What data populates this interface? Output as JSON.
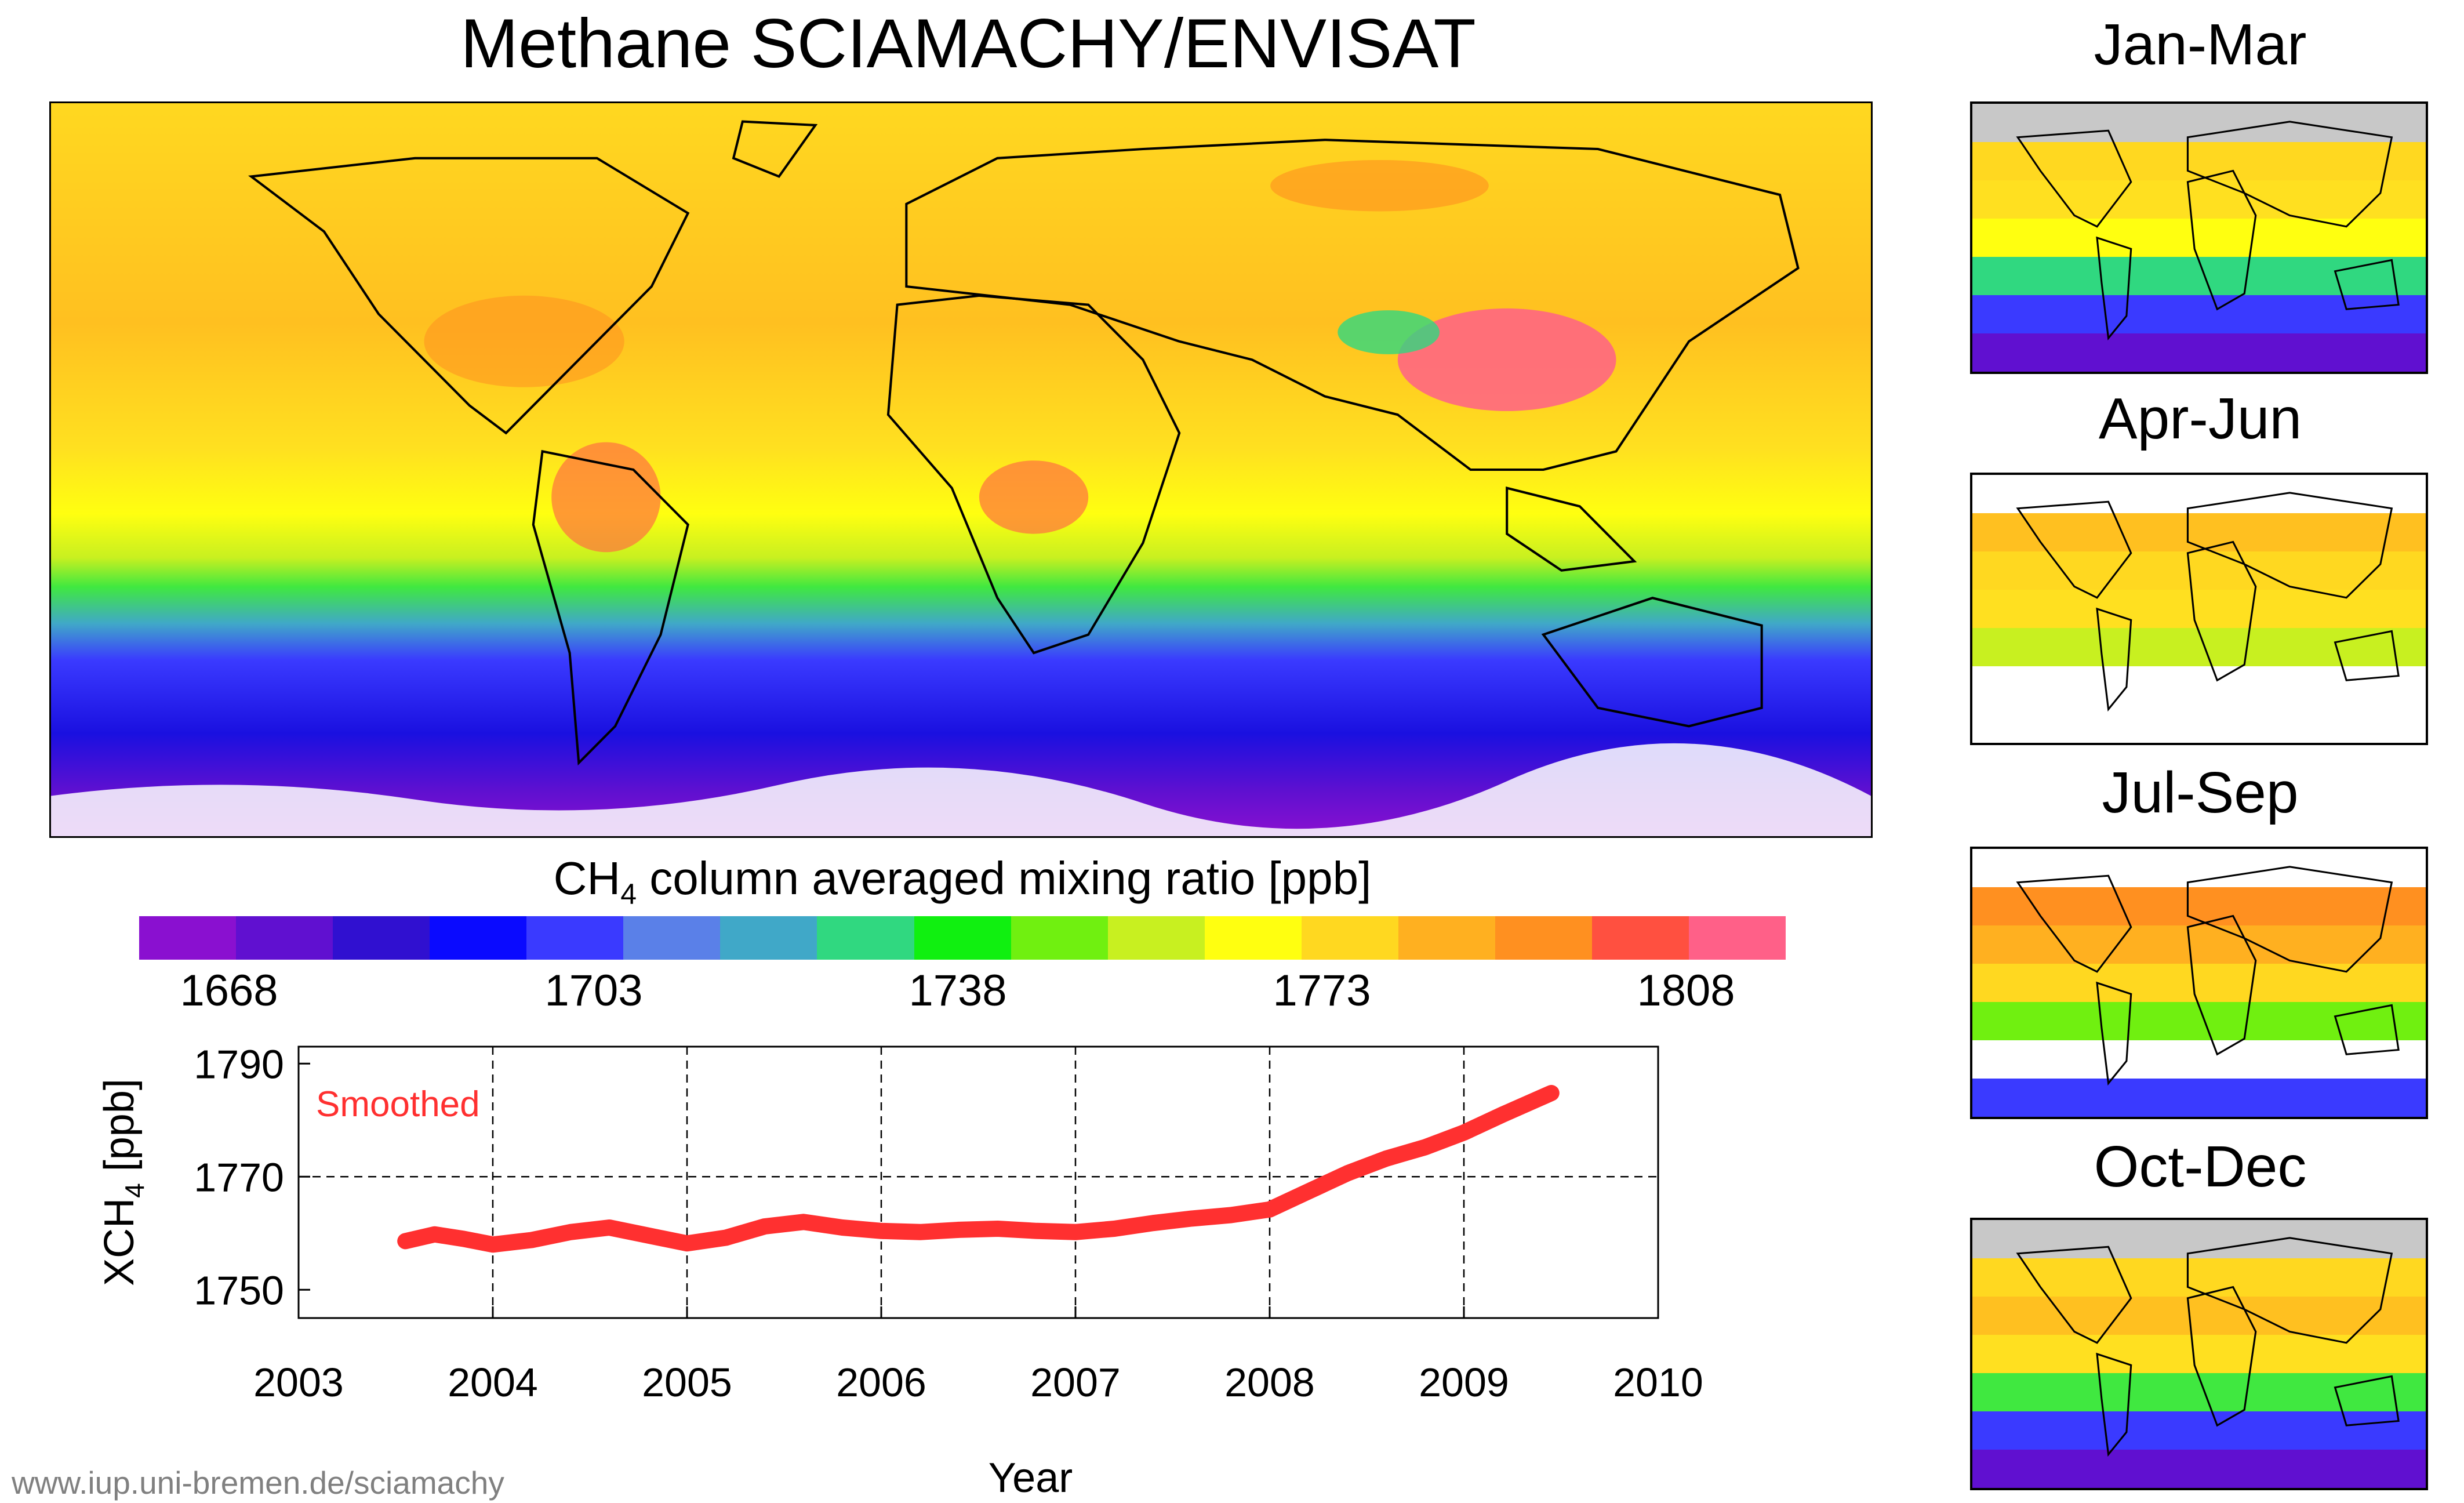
{
  "title": "Methane SCIAMACHY/ENVISAT",
  "colorbar": {
    "label_main": "CH",
    "label_sub": "4",
    "label_rest": " column averaged mixing ratio [ppb]",
    "colors": [
      "#8a10d0",
      "#6010d0",
      "#3010d0",
      "#0a0aff",
      "#3a3aff",
      "#5a80e8",
      "#40a8c8",
      "#30d880",
      "#10f010",
      "#70f010",
      "#c8f020",
      "#ffff10",
      "#ffd820",
      "#ffb020",
      "#ff9020",
      "#ff5040",
      "#ff6088"
    ],
    "ticks": [
      "1668",
      "1703",
      "1738",
      "1773",
      "1808"
    ]
  },
  "seasons": [
    "Jan-Mar",
    "Apr-Jun",
    "Jul-Sep",
    "Oct-Dec"
  ],
  "footer": "www.iup.uni-bremen.de/sciamachy",
  "chart_data": {
    "type": "line",
    "xlabel": "Year",
    "ylabel": "XCH4 [ppb]",
    "ylabel_main": "XCH",
    "ylabel_sub": "4",
    "ylabel_rest": " [ppb]",
    "xlim": [
      2003,
      2010
    ],
    "ylim": [
      1745,
      1793
    ],
    "xticks": [
      "2003",
      "2004",
      "2005",
      "2006",
      "2007",
      "2008",
      "2009",
      "2010"
    ],
    "yticks": [
      "1750",
      "1770",
      "1790"
    ],
    "grid": true,
    "series": [
      {
        "name": "Smoothed",
        "color": "#ff3030",
        "x": [
          2003.55,
          2003.7,
          2003.85,
          2004.0,
          2004.2,
          2004.4,
          2004.6,
          2004.8,
          2005.0,
          2005.2,
          2005.4,
          2005.6,
          2005.8,
          2006.0,
          2006.2,
          2006.4,
          2006.6,
          2006.8,
          2007.0,
          2007.2,
          2007.4,
          2007.6,
          2007.8,
          2008.0,
          2008.2,
          2008.4,
          2008.6,
          2008.8,
          2009.0,
          2009.2,
          2009.45
        ],
        "values": [
          1758.6,
          1759.8,
          1759.0,
          1758.0,
          1758.8,
          1760.2,
          1761.0,
          1759.6,
          1758.2,
          1759.2,
          1761.2,
          1762.0,
          1761.0,
          1760.4,
          1760.2,
          1760.6,
          1760.8,
          1760.4,
          1760.2,
          1760.8,
          1761.8,
          1762.6,
          1763.2,
          1764.2,
          1767.4,
          1770.6,
          1773.2,
          1775.2,
          1777.8,
          1781.0,
          1784.8
        ]
      }
    ]
  }
}
